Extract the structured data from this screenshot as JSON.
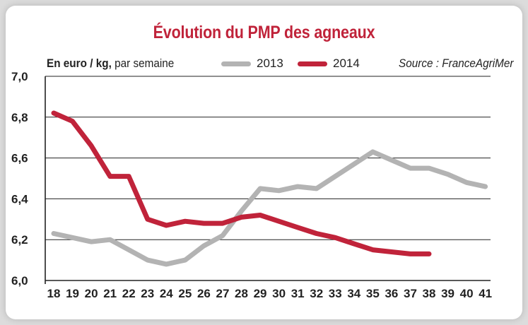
{
  "chart_data": {
    "type": "line",
    "title": "Évolution du PMP des agneaux",
    "unit_bold": "En euro / kg,",
    "unit_rest": " par semaine",
    "source": "Source : FranceAgriMer",
    "x": [
      18,
      19,
      20,
      21,
      22,
      23,
      24,
      25,
      26,
      27,
      28,
      29,
      30,
      31,
      32,
      33,
      34,
      35,
      36,
      37,
      38,
      39,
      40,
      41
    ],
    "ylim": [
      6.0,
      7.0
    ],
    "yticks": [
      "6,0",
      "6,2",
      "6,4",
      "6,6",
      "6,8",
      "7,0"
    ],
    "ytick_values": [
      6.0,
      6.2,
      6.4,
      6.6,
      6.8,
      7.0
    ],
    "grid": true,
    "legend_position": "top",
    "series": [
      {
        "name": "2013",
        "color": "#b3b3b3",
        "values": [
          6.23,
          6.21,
          6.19,
          6.2,
          6.15,
          6.1,
          6.08,
          6.1,
          6.17,
          6.22,
          6.34,
          6.45,
          6.44,
          6.46,
          6.45,
          6.51,
          6.57,
          6.63,
          6.59,
          6.55,
          6.55,
          6.52,
          6.48,
          6.46
        ]
      },
      {
        "name": "2014",
        "color": "#c0233a",
        "values": [
          6.82,
          6.78,
          6.66,
          6.51,
          6.51,
          6.3,
          6.27,
          6.29,
          6.28,
          6.28,
          6.31,
          6.32,
          6.29,
          6.26,
          6.23,
          6.21,
          6.18,
          6.15,
          6.14,
          6.13,
          6.13,
          null,
          null,
          null
        ]
      }
    ]
  }
}
